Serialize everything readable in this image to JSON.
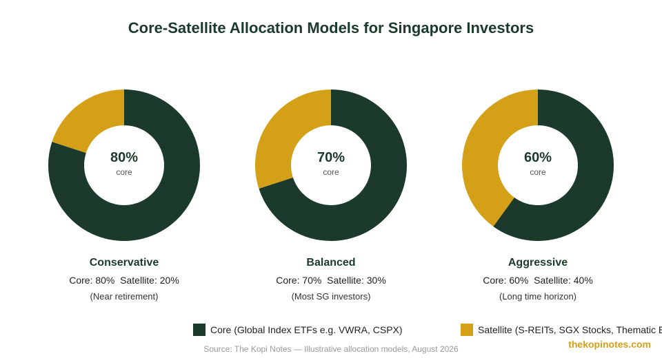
{
  "title": "Core-Satellite Allocation Models for Singapore Investors",
  "chart_data": [
    {
      "type": "pie",
      "style": "donut",
      "labels": [
        "Core",
        "Satellite"
      ],
      "values": [
        80,
        20
      ],
      "center_value": "80%",
      "center_label": "core",
      "name": "Conservative",
      "split_text": "Core: 80%  Satellite: 20%",
      "note": "(Near retirement)"
    },
    {
      "type": "pie",
      "style": "donut",
      "labels": [
        "Core",
        "Satellite"
      ],
      "values": [
        70,
        30
      ],
      "center_value": "70%",
      "center_label": "core",
      "name": "Balanced",
      "split_text": "Core: 70%  Satellite: 30%",
      "note": "(Most SG investors)"
    },
    {
      "type": "pie",
      "style": "donut",
      "labels": [
        "Core",
        "Satellite"
      ],
      "values": [
        60,
        40
      ],
      "center_value": "60%",
      "center_label": "core",
      "name": "Aggressive",
      "split_text": "Core: 60%  Satellite: 40%",
      "note": "(Long time horizon)"
    }
  ],
  "legend": {
    "core": "Core (Global Index ETFs e.g. VWRA, CSPX)",
    "satellite": "Satellite (S-REITs, SGX Stocks, Thematic E"
  },
  "colors": {
    "core": "#1b3a2b",
    "satellite": "#d4a017"
  },
  "source": "Source: The Kopi Notes — Illustrative allocation models, August 2026",
  "brand": "thekopinotes.com"
}
